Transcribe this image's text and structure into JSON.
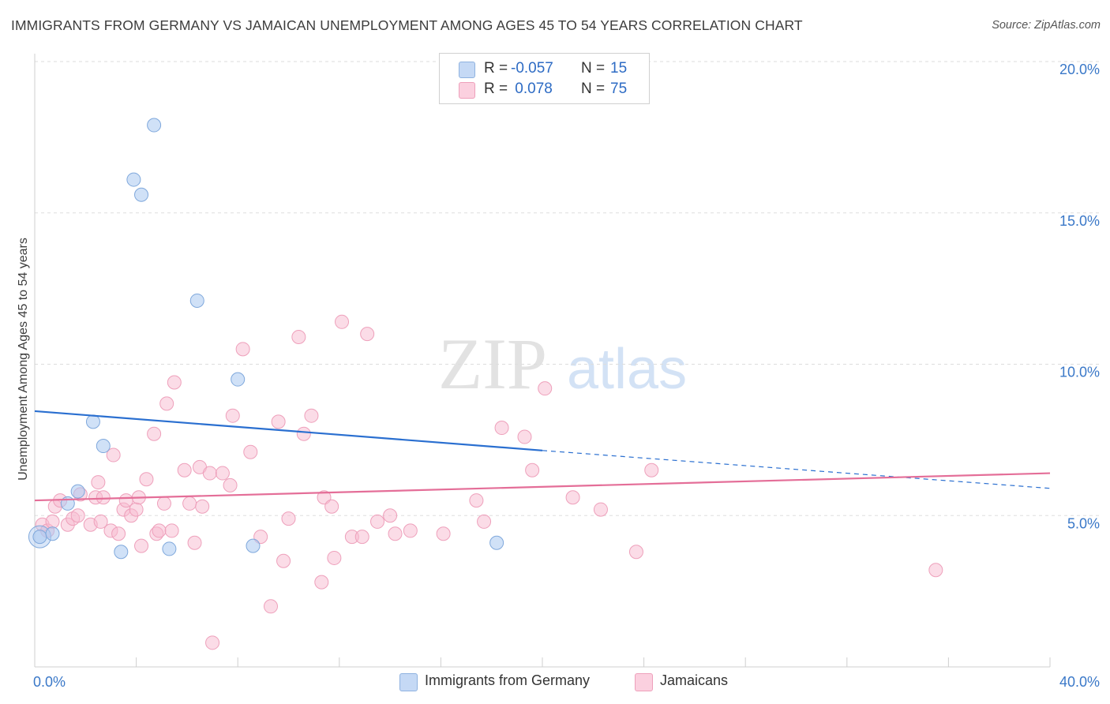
{
  "title": "IMMIGRANTS FROM GERMANY VS JAMAICAN UNEMPLOYMENT AMONG AGES 45 TO 54 YEARS CORRELATION CHART",
  "source": "Source: ZipAtlas.com",
  "watermark": {
    "zip": "ZIP",
    "atlas": "atlas"
  },
  "legend": {
    "rows": [
      {
        "r_label": "R =",
        "r_value": "-0.057",
        "n_label": "N =",
        "n_value": "15",
        "color": "#aac8f0"
      },
      {
        "r_label": "R =",
        "r_value": " 0.078",
        "n_label": "N =",
        "n_value": "75",
        "color": "#f7b9cf"
      }
    ]
  },
  "bottom_legend": [
    {
      "label": "Immigrants from Germany",
      "color": "#aac8f0"
    },
    {
      "label": "Jamaicans",
      "color": "#f7b9cf"
    }
  ],
  "colors": {
    "blue_fill": "#aac8f0",
    "blue_stroke": "#7fa8dc",
    "blue_line": "#2a6fd0",
    "pink_fill": "#f7b9cf",
    "pink_stroke": "#eea0bb",
    "pink_line": "#e46e98",
    "tick_label": "#3a78c8",
    "grid": "#dddddd"
  },
  "chart_data": {
    "type": "scatter",
    "title": "IMMIGRANTS FROM GERMANY VS JAMAICAN UNEMPLOYMENT AMONG AGES 45 TO 54 YEARS CORRELATION CHART",
    "xlabel": "",
    "ylabel": "Unemployment Among Ages 45 to 54 years",
    "xlim": [
      0,
      40
    ],
    "ylim": [
      0,
      20
    ],
    "x_tick_labels": [
      "0.0%",
      "40.0%"
    ],
    "y_ticks": [
      {
        "value": 5,
        "label": "5.0%"
      },
      {
        "value": 10,
        "label": "10.0%"
      },
      {
        "value": 15,
        "label": "15.0%"
      },
      {
        "value": 20,
        "label": "20.0%"
      }
    ],
    "x_minor_ticks": [
      4,
      8,
      12,
      16,
      20,
      24,
      28,
      32,
      36,
      40
    ],
    "grid": true,
    "legend_position": "top-center",
    "series": [
      {
        "name": "Immigrants from Germany",
        "x": [
          0.2,
          0.7,
          1.3,
          1.7,
          2.3,
          2.7,
          3.4,
          3.9,
          4.2,
          4.7,
          5.3,
          6.4,
          8.0,
          8.6,
          18.2
        ],
        "y": [
          4.3,
          4.4,
          5.4,
          5.8,
          8.1,
          7.3,
          3.8,
          16.1,
          15.6,
          17.9,
          3.9,
          12.1,
          9.5,
          4.0,
          4.1
        ],
        "trend": {
          "x": [
            0,
            20
          ],
          "y": [
            8.45,
            7.15
          ],
          "dashed_to": {
            "x": 40,
            "y": 5.9
          }
        }
      },
      {
        "name": "Jamaicans",
        "x": [
          0.3,
          0.5,
          0.7,
          0.8,
          1.0,
          1.3,
          1.5,
          1.7,
          1.8,
          2.2,
          2.4,
          2.5,
          2.6,
          2.7,
          3.0,
          3.1,
          3.3,
          3.5,
          3.6,
          3.8,
          4.0,
          4.1,
          4.2,
          4.4,
          4.7,
          4.8,
          4.9,
          5.1,
          5.2,
          5.4,
          5.5,
          5.9,
          6.1,
          6.3,
          6.5,
          6.6,
          6.9,
          7.0,
          7.4,
          7.7,
          7.8,
          8.2,
          8.5,
          8.9,
          9.3,
          9.6,
          9.8,
          10.0,
          10.4,
          10.6,
          10.9,
          11.3,
          11.4,
          11.7,
          11.8,
          12.1,
          12.5,
          12.9,
          13.1,
          13.5,
          14.0,
          14.2,
          14.8,
          16.1,
          17.4,
          17.7,
          18.4,
          19.3,
          19.6,
          20.1,
          21.2,
          22.3,
          23.7,
          24.3,
          35.5
        ],
        "y": [
          4.7,
          4.5,
          4.8,
          5.3,
          5.5,
          4.7,
          4.9,
          5.0,
          5.7,
          4.7,
          5.6,
          6.1,
          4.8,
          5.6,
          4.5,
          7.0,
          4.4,
          5.2,
          5.5,
          5.0,
          5.2,
          5.6,
          4.0,
          6.2,
          7.7,
          4.4,
          4.5,
          5.4,
          8.7,
          4.5,
          9.4,
          6.5,
          5.4,
          4.1,
          6.6,
          5.3,
          6.4,
          0.8,
          6.4,
          6.0,
          8.3,
          10.5,
          7.1,
          4.3,
          2.0,
          8.1,
          3.5,
          4.9,
          10.9,
          7.7,
          8.3,
          2.8,
          5.6,
          5.3,
          3.6,
          11.4,
          4.3,
          4.3,
          11.0,
          4.8,
          5.0,
          4.4,
          4.5,
          4.4,
          5.5,
          4.8,
          7.9,
          7.6,
          6.5,
          9.2,
          5.6,
          5.2,
          3.8,
          6.5,
          3.2
        ],
        "trend": {
          "x": [
            0,
            40
          ],
          "y": [
            5.5,
            6.4
          ]
        }
      }
    ]
  }
}
